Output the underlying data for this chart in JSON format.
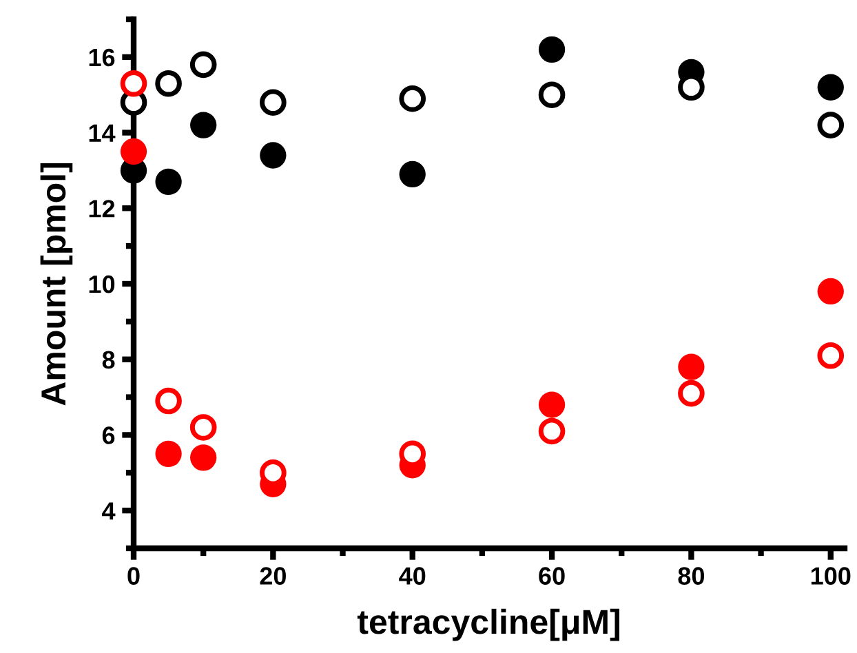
{
  "chart_data": {
    "type": "scatter",
    "xlabel": "tetracycline[μM]",
    "ylabel": "Amount [pmol]",
    "x": [
      0,
      5,
      10,
      20,
      40,
      60,
      80,
      100
    ],
    "series": [
      {
        "color": "#000000",
        "values": [
          13.0,
          12.7,
          14.2,
          13.4,
          12.9,
          16.2,
          15.6,
          15.2
        ]
      },
      {
        "color": "#000000",
        "values": [
          14.8,
          15.3,
          15.8,
          14.8,
          14.9,
          15.0,
          15.2,
          14.2
        ]
      },
      {
        "color": "#ff0000",
        "values": [
          13.5,
          5.5,
          5.4,
          4.7,
          5.2,
          6.8,
          7.8,
          9.8
        ]
      },
      {
        "color": "#ff0000",
        "values": [
          15.3,
          6.9,
          6.2,
          5.0,
          5.5,
          6.1,
          7.1,
          8.1
        ]
      }
    ],
    "marker": "circle",
    "xlim": [
      0,
      102
    ],
    "ylim": [
      3,
      17
    ],
    "xticks": [
      0,
      20,
      40,
      60,
      80,
      100
    ],
    "yticks": [
      4,
      6,
      8,
      10,
      12,
      14,
      16
    ],
    "grid": false,
    "legend": false
  }
}
